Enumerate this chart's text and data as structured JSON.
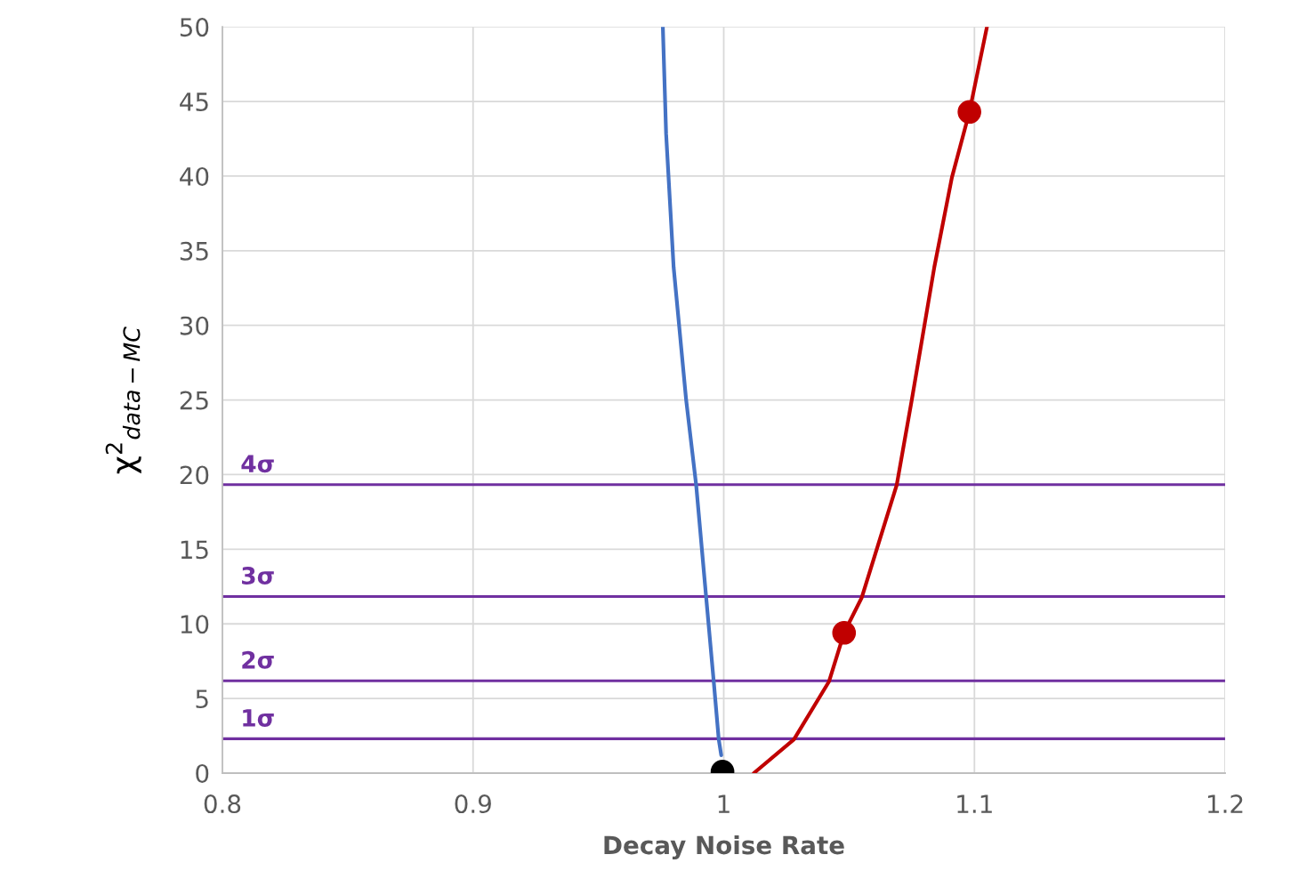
{
  "chart_data": {
    "type": "line",
    "xlabel": "Decay Noise Rate",
    "ylabel": "χ$^{2}$$_{data−MC}$",
    "xlim": [
      0.8,
      1.2
    ],
    "xticks": [
      0.8,
      0.9,
      1,
      1.1,
      1.2
    ],
    "ylim": [
      0,
      50
    ],
    "yticks": [
      0,
      5,
      10,
      15,
      20,
      25,
      30,
      35,
      40,
      45,
      50
    ],
    "grid": true,
    "legend": false,
    "series": [
      {
        "color": "#4472c4",
        "x": [
          0.9757,
          0.977,
          0.98,
          0.985,
          0.989,
          0.993,
          0.996,
          0.998,
          0.999
        ],
        "values": [
          50,
          42.85,
          33.9,
          25.0,
          19.3,
          11.74,
          6.14,
          2.26,
          1.2
        ]
      },
      {
        "color": "#c00000",
        "x": [
          1.012,
          1.028,
          1.042,
          1.048,
          1.055,
          1.069,
          1.075,
          1.084,
          1.091,
          1.098,
          1.105
        ],
        "values": [
          0,
          2.26,
          6.14,
          9.4,
          11.74,
          19.3,
          25.0,
          33.9,
          39.9,
          44.3,
          50
        ]
      },
      {
        "type": "scatter",
        "color": "#c00000",
        "marker": "circle",
        "x": [
          1.048,
          1.098
        ],
        "values": [
          9.4,
          44.3
        ]
      },
      {
        "type": "scatter",
        "color": "#000000",
        "marker": "circle",
        "x": [
          0.9995
        ],
        "values": [
          0.1
        ]
      }
    ],
    "ref_lines": [
      {
        "axis": "y",
        "value": 2.3,
        "label": "1σ",
        "color": "#7030a0"
      },
      {
        "axis": "y",
        "value": 6.18,
        "label": "2σ",
        "color": "#7030a0"
      },
      {
        "axis": "y",
        "value": 11.83,
        "label": "3σ",
        "color": "#7030a0"
      },
      {
        "axis": "y",
        "value": 19.33,
        "label": "4σ",
        "color": "#7030a0"
      }
    ]
  }
}
